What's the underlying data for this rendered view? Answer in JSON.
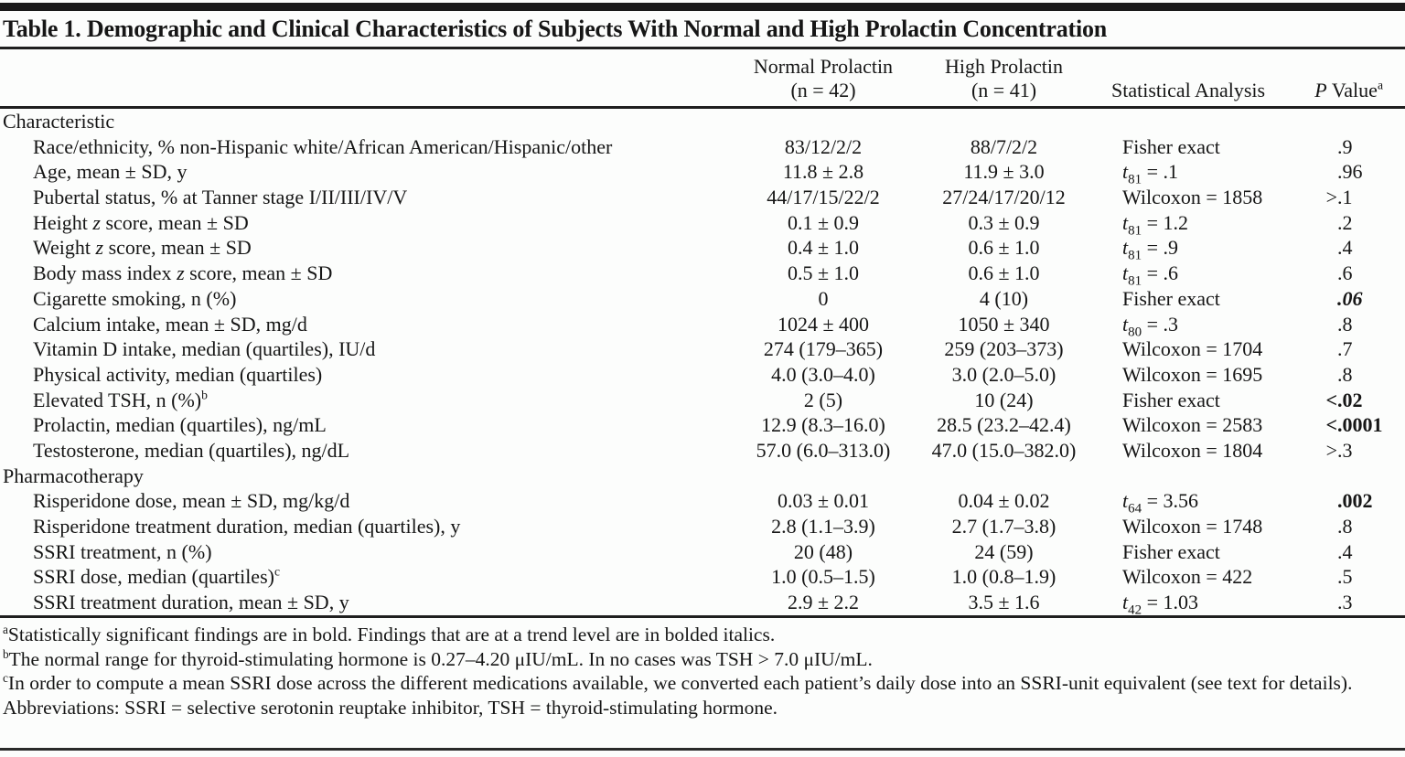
{
  "title": "Table 1. Demographic and Clinical Characteristics of Subjects With Normal and High Prolactin Concentration",
  "header": {
    "normal_line1": "Normal Prolactin",
    "normal_line2": "(n = 42)",
    "high_line1": "High Prolactin",
    "high_line2": "(n = 41)",
    "stat": "Statistical Analysis",
    "p_italic": "P",
    "p_rest": " Value",
    "p_sup": "a"
  },
  "sections": [
    {
      "label": "Characteristic",
      "rows": [
        {
          "label": [
            {
              "t": "Race/ethnicity, % non-Hispanic white/African American/Hispanic/other"
            }
          ],
          "normal": "83/12/2/2",
          "high": "88/7/2/2",
          "stat": [
            {
              "t": "Fisher exact"
            }
          ],
          "p": {
            "pre": "",
            "val": ".9"
          }
        },
        {
          "label": [
            {
              "t": "Age, mean ± SD, y"
            }
          ],
          "normal": "11.8 ± 2.8",
          "high": "11.9 ± 3.0",
          "stat": [
            {
              "t": "t",
              "i": true
            },
            {
              "t": "81",
              "sub": true
            },
            {
              "t": " = .1"
            }
          ],
          "p": {
            "pre": "",
            "val": ".96"
          }
        },
        {
          "label": [
            {
              "t": "Pubertal status, % at Tanner stage I/II/III/IV/V"
            }
          ],
          "normal": "44/17/15/22/2",
          "high": "27/24/17/20/12",
          "stat": [
            {
              "t": "Wilcoxon = 1858"
            }
          ],
          "p": {
            "pre": ">",
            "val": ".1"
          }
        },
        {
          "label": [
            {
              "t": "Height "
            },
            {
              "t": "z",
              "i": true
            },
            {
              "t": " score, mean ± SD"
            }
          ],
          "normal": "0.1 ± 0.9",
          "high": "0.3 ± 0.9",
          "stat": [
            {
              "t": "t",
              "i": true
            },
            {
              "t": "81",
              "sub": true
            },
            {
              "t": " = 1.2"
            }
          ],
          "p": {
            "pre": "",
            "val": ".2"
          }
        },
        {
          "label": [
            {
              "t": "Weight "
            },
            {
              "t": "z",
              "i": true
            },
            {
              "t": " score, mean ± SD"
            }
          ],
          "normal": "0.4 ± 1.0",
          "high": "0.6 ± 1.0",
          "stat": [
            {
              "t": "t",
              "i": true
            },
            {
              "t": "81",
              "sub": true
            },
            {
              "t": " = .9"
            }
          ],
          "p": {
            "pre": "",
            "val": ".4"
          }
        },
        {
          "label": [
            {
              "t": "Body mass index "
            },
            {
              "t": "z",
              "i": true
            },
            {
              "t": " score, mean ± SD"
            }
          ],
          "normal": "0.5 ± 1.0",
          "high": "0.6 ± 1.0",
          "stat": [
            {
              "t": "t",
              "i": true
            },
            {
              "t": "81",
              "sub": true
            },
            {
              "t": " = .6"
            }
          ],
          "p": {
            "pre": "",
            "val": ".6"
          }
        },
        {
          "label": [
            {
              "t": "Cigarette smoking, n (%)"
            }
          ],
          "normal": "0",
          "high": "4 (10)",
          "stat": [
            {
              "t": "Fisher exact"
            }
          ],
          "p": {
            "pre": "",
            "val": ".06",
            "bold": true,
            "italic": true
          }
        },
        {
          "label": [
            {
              "t": "Calcium intake, mean ± SD, mg/d"
            }
          ],
          "normal": "1024 ± 400",
          "high": "1050 ± 340",
          "stat": [
            {
              "t": "t",
              "i": true
            },
            {
              "t": "80",
              "sub": true
            },
            {
              "t": " = .3"
            }
          ],
          "p": {
            "pre": "",
            "val": ".8"
          }
        },
        {
          "label": [
            {
              "t": "Vitamin D intake, median (quartiles), IU/d"
            }
          ],
          "normal": "274 (179–365)",
          "high": "259 (203–373)",
          "stat": [
            {
              "t": "Wilcoxon = 1704"
            }
          ],
          "p": {
            "pre": "",
            "val": ".7"
          }
        },
        {
          "label": [
            {
              "t": "Physical activity, median (quartiles)"
            }
          ],
          "normal": "4.0 (3.0–4.0)",
          "high": "3.0 (2.0–5.0)",
          "stat": [
            {
              "t": "Wilcoxon = 1695"
            }
          ],
          "p": {
            "pre": "",
            "val": ".8"
          }
        },
        {
          "label": [
            {
              "t": "Elevated TSH, n (%)"
            },
            {
              "t": "b",
              "sup": true
            }
          ],
          "normal": "2 (5)",
          "high": "10 (24)",
          "stat": [
            {
              "t": "Fisher exact"
            }
          ],
          "p": {
            "pre": "<",
            "val": ".02",
            "bold": true
          }
        },
        {
          "label": [
            {
              "t": "Prolactin, median (quartiles), ng/mL"
            }
          ],
          "normal": "12.9 (8.3–16.0)",
          "high": "28.5 (23.2–42.4)",
          "stat": [
            {
              "t": "Wilcoxon = 2583"
            }
          ],
          "p": {
            "pre": "<",
            "val": ".0001",
            "bold": true
          }
        },
        {
          "label": [
            {
              "t": "Testosterone, median (quartiles), ng/dL"
            }
          ],
          "normal": "57.0 (6.0–313.0)",
          "high": "47.0 (15.0–382.0)",
          "stat": [
            {
              "t": "Wilcoxon = 1804"
            }
          ],
          "p": {
            "pre": ">",
            "val": ".3"
          }
        }
      ]
    },
    {
      "label": "Pharmacotherapy",
      "rows": [
        {
          "label": [
            {
              "t": "Risperidone dose, mean ± SD, mg/kg/d"
            }
          ],
          "normal": "0.03 ± 0.01",
          "high": "0.04 ± 0.02",
          "stat": [
            {
              "t": "t",
              "i": true
            },
            {
              "t": "64",
              "sub": true
            },
            {
              "t": " = 3.56"
            }
          ],
          "p": {
            "pre": "",
            "val": ".002",
            "bold": true
          }
        },
        {
          "label": [
            {
              "t": "Risperidone treatment duration, median (quartiles), y"
            }
          ],
          "normal": "2.8 (1.1–3.9)",
          "high": "2.7 (1.7–3.8)",
          "stat": [
            {
              "t": "Wilcoxon = 1748"
            }
          ],
          "p": {
            "pre": "",
            "val": ".8"
          }
        },
        {
          "label": [
            {
              "t": "SSRI treatment, n (%)"
            }
          ],
          "normal": "20 (48)",
          "high": "24 (59)",
          "stat": [
            {
              "t": "Fisher exact"
            }
          ],
          "p": {
            "pre": "",
            "val": ".4"
          }
        },
        {
          "label": [
            {
              "t": "SSRI dose, median (quartiles)"
            },
            {
              "t": "c",
              "sup": true
            }
          ],
          "normal": "1.0 (0.5–1.5)",
          "high": "1.0 (0.8–1.9)",
          "stat": [
            {
              "t": "Wilcoxon = 422"
            }
          ],
          "p": {
            "pre": "",
            "val": ".5"
          }
        },
        {
          "label": [
            {
              "t": "SSRI treatment duration, mean ± SD, y"
            }
          ],
          "normal": "2.9 ± 2.2",
          "high": "3.5 ± 1.6",
          "stat": [
            {
              "t": "t",
              "i": true
            },
            {
              "t": "42",
              "sub": true
            },
            {
              "t": " = 1.03"
            }
          ],
          "p": {
            "pre": "",
            "val": ".3"
          }
        }
      ]
    }
  ],
  "footnotes": [
    {
      "sup": "a",
      "text": "Statistically significant findings are in bold. Findings that are at a trend level are in bolded italics."
    },
    {
      "sup": "b",
      "text": "The normal range for thyroid-stimulating hormone is 0.27–4.20 μIU/mL. In no cases was TSH > 7.0 μIU/mL."
    },
    {
      "sup": "c",
      "text": "In order to compute a mean SSRI dose across the different medications available, we converted each patient’s daily dose into an SSRI-unit equivalent (see text for details)."
    },
    {
      "sup": "",
      "text": "Abbreviations: SSRI = selective serotonin reuptake inhibitor, TSH = thyroid-stimulating hormone."
    }
  ]
}
